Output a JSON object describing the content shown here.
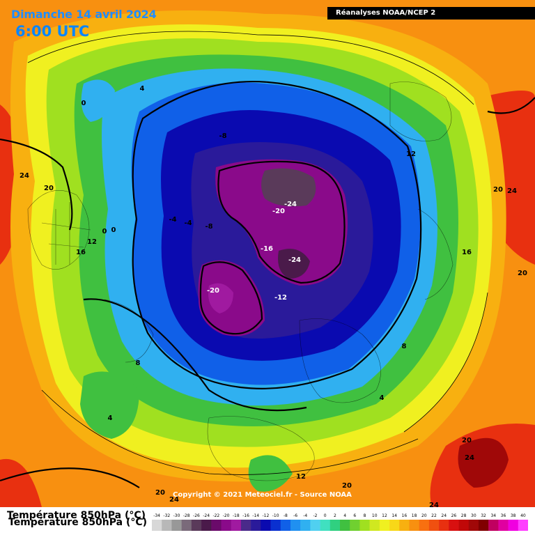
{
  "header": {
    "date": "Dimanche 14 avril 2024",
    "time": "6:00 UTC",
    "source": "Réanalyses NOAA/NCEP 2"
  },
  "footer": {
    "copyright": "Copyright © 2021 Meteociel.fr - Source NOAA",
    "legend_title": "Température 850hPa (°C)"
  },
  "legend_scale": {
    "ticks": [
      "-34",
      "-32",
      "-30",
      "-28",
      "-26",
      "-24",
      "-22",
      "-20",
      "-18",
      "-16",
      "-14",
      "-12",
      "-10",
      "-8",
      "-6",
      "-4",
      "-2",
      "0",
      "2",
      "4",
      "6",
      "8",
      "10",
      "12",
      "14",
      "16",
      "18",
      "20",
      "22",
      "24",
      "26",
      "28",
      "30",
      "32",
      "34",
      "36",
      "38",
      "40"
    ],
    "colors": [
      "#d8d8d8",
      "#b8b8b8",
      "#989898",
      "#7a6a7a",
      "#5a3a5a",
      "#4a1a4a",
      "#6a0a6a",
      "#8a0a8a",
      "#a01aa0",
      "#4a2a8a",
      "#2a1a9a",
      "#0a0ab0",
      "#0a30d0",
      "#1060e8",
      "#2090f0",
      "#30b0f0",
      "#50d0f0",
      "#40e0c0",
      "#30d080",
      "#40c040",
      "#70d030",
      "#a0e020",
      "#d0e820",
      "#f0f020",
      "#f8d818",
      "#f8b010",
      "#f89010",
      "#f87010",
      "#f05010",
      "#e83010",
      "#d81010",
      "#c00808",
      "#a00808",
      "#800000",
      "#c00060",
      "#e000a0",
      "#f000e0",
      "#ff40ff"
    ]
  },
  "contour_labels": [
    {
      "text": "-24"
    },
    {
      "text": "-20"
    },
    {
      "text": "-16"
    },
    {
      "text": "-24"
    },
    {
      "text": "-20"
    },
    {
      "text": "-12"
    },
    {
      "text": "-8"
    },
    {
      "text": "-8"
    },
    {
      "text": "-4"
    },
    {
      "text": "-4"
    },
    {
      "text": "0"
    },
    {
      "text": "0"
    },
    {
      "text": "4"
    },
    {
      "text": "4"
    },
    {
      "text": "4"
    },
    {
      "text": "8"
    },
    {
      "text": "8"
    },
    {
      "text": "12"
    },
    {
      "text": "12"
    },
    {
      "text": "12"
    },
    {
      "text": "16"
    },
    {
      "text": "16"
    },
    {
      "text": "20"
    },
    {
      "text": "20"
    },
    {
      "text": "20"
    },
    {
      "text": "20"
    },
    {
      "text": "20"
    },
    {
      "text": "24"
    },
    {
      "text": "24"
    },
    {
      "text": "24"
    },
    {
      "text": "24"
    },
    {
      "text": "24"
    },
    {
      "text": "20"
    },
    {
      "text": "0"
    }
  ]
}
